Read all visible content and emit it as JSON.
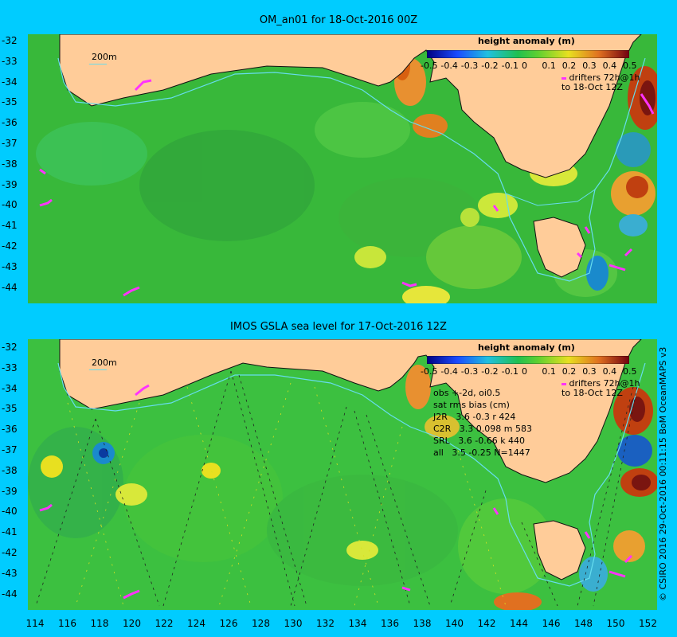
{
  "top_panel": {
    "title": "OM_an01 for 18-Oct-2016 00Z",
    "colorbar_title": "height anomaly (m)",
    "colorbar_ticks": [
      "-0.5",
      "-0.4",
      "-0.3",
      "-0.2",
      "-0.1",
      "0",
      "0.1",
      "0.2",
      "0.3",
      "0.4",
      "0.5"
    ],
    "drifters_line1": "drifters 72h@1h",
    "drifters_line2": "to 18-Oct 12Z",
    "contour_label": "200m"
  },
  "bottom_panel": {
    "title": "IMOS GSLA sea level  for 17-Oct-2016 12Z",
    "colorbar_title": "height anomaly (m)",
    "colorbar_ticks": [
      "-0.5",
      "-0.4",
      "-0.3",
      "-0.2",
      "-0.1",
      "0",
      "0.1",
      "0.2",
      "0.3",
      "0.4",
      "0.5"
    ],
    "drifters_line1": "drifters 72h@1h",
    "drifters_line2": "to 18-Oct 12Z",
    "contour_label": "200m",
    "stats": [
      "obs +-2d, oi0.5",
      "sat rms bias (cm)",
      "J2R   3.6 -0.3 r 424",
      "C2R   3.3 0.098 m 583",
      "SRL   3.6 -0.66 k 440",
      "all   3.5 -0.25 N=1447"
    ],
    "credit": "© CSIRO 2016  29-Oct-2016 00:11:15 BoM OceanMAPS v3"
  },
  "axes": {
    "lat_ticks_top": [
      "-32",
      "-33",
      "-34",
      "-35",
      "-36",
      "-37",
      "-38",
      "-39",
      "-40",
      "-41",
      "-42",
      "-43",
      "-44"
    ],
    "lat_ticks_bottom": [
      "-32",
      "-33",
      "-34",
      "-35",
      "-36",
      "-37",
      "-38",
      "-39",
      "-40",
      "-41",
      "-42",
      "-43",
      "-44"
    ],
    "lon_ticks": [
      "114",
      "116",
      "118",
      "120",
      "122",
      "124",
      "126",
      "128",
      "130",
      "132",
      "134",
      "136",
      "138",
      "140",
      "142",
      "144",
      "146",
      "148",
      "150",
      "152"
    ]
  },
  "colors": {
    "background": "#00ccff",
    "land": "#ffcc99",
    "ocean_base": "#33bb33",
    "drifter": "#ff33ff",
    "contour": "#66ddee"
  }
}
